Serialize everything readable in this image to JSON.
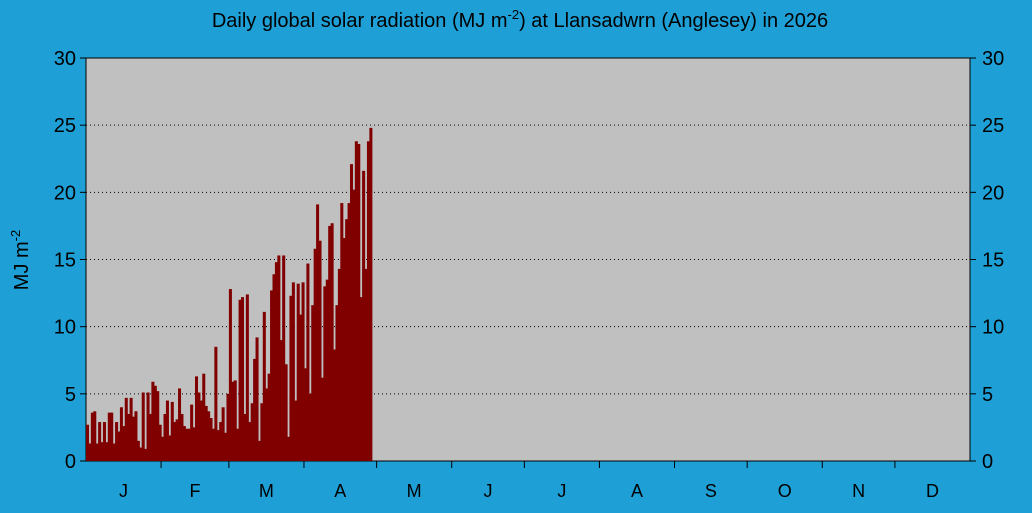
{
  "chart_data": {
    "type": "bar",
    "title_main": "Daily global solar radiation (MJ m",
    "title_sup": "-2",
    "title_rest": ") at Llansadwrn (Anglesey) in 2026",
    "ylabel_main": "MJ m",
    "ylabel_sup": "-2",
    "ylim": [
      0,
      30
    ],
    "yticks": [
      "0",
      "5",
      "10",
      "15",
      "20",
      "25",
      "30"
    ],
    "months": [
      "J",
      "F",
      "M",
      "A",
      "M",
      "J",
      "J",
      "A",
      "S",
      "O",
      "N",
      "D"
    ],
    "grid": true,
    "colors": {
      "background": "#1e9fd6",
      "plot": "#c0c0c0",
      "bar": "#800000"
    },
    "values": [
      2.7,
      1.3,
      3.6,
      3.7,
      1.3,
      2.9,
      1.4,
      2.9,
      1.4,
      3.6,
      3.6,
      1.3,
      2.9,
      2.2,
      4.0,
      2.6,
      4.7,
      3.5,
      4.7,
      3.3,
      3.7,
      1.5,
      1.0,
      5.1,
      0.9,
      5.1,
      3.5,
      5.9,
      5.6,
      5.2,
      2.7,
      1.8,
      3.5,
      4.5,
      1.9,
      4.4,
      2.9,
      3.1,
      5.4,
      3.5,
      2.6,
      2.4,
      2.4,
      4.2,
      2.5,
      6.3,
      5.1,
      4.5,
      6.5,
      4.1,
      3.7,
      3.2,
      2.4,
      8.5,
      2.3,
      2.9,
      4.0,
      2.1,
      5.0,
      12.8,
      5.9,
      6.0,
      2.4,
      12.0,
      12.2,
      3.5,
      12.4,
      2.9,
      4.3,
      7.6,
      9.2,
      1.5,
      4.3,
      11.1,
      5.4,
      6.5,
      12.7,
      13.9,
      14.8,
      15.3,
      9.0,
      15.3,
      7.2,
      1.8,
      12.3,
      13.3,
      4.5,
      13.2,
      10.9,
      13.3,
      6.9,
      14.7,
      5.0,
      11.6,
      15.8,
      19.1,
      16.4,
      6.2,
      13.0,
      13.5,
      17.5,
      17.7,
      8.3,
      11.6,
      14.3,
      19.2,
      16.6,
      18.0,
      19.2,
      22.1,
      20.2,
      23.8,
      23.6,
      12.2,
      21.6,
      14.3,
      23.8,
      24.8
    ]
  }
}
